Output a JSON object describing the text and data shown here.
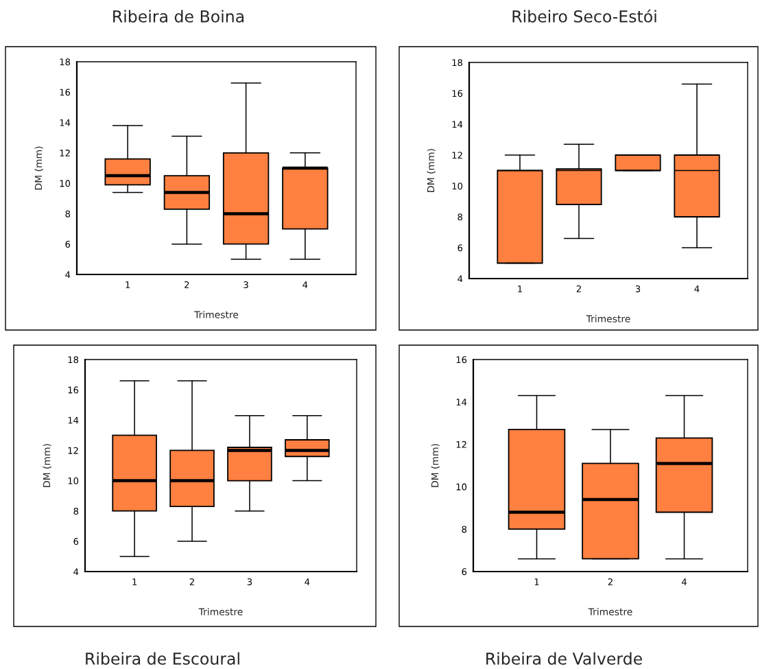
{
  "chart_data": [
    {
      "type": "box",
      "title": "Ribeira de Boina",
      "xlabel": "Trimestre",
      "ylabel": "DM (mm)",
      "categories": [
        "1",
        "2",
        "3",
        "4"
      ],
      "color": "#ff8040",
      "ylim": [
        4,
        18
      ],
      "yticks": [
        4,
        6,
        8,
        10,
        12,
        14,
        16,
        18
      ],
      "boxes": [
        {
          "low": 9.4,
          "q1": 9.9,
          "median": 10.5,
          "q3": 11.6,
          "high": 13.8
        },
        {
          "low": 6,
          "q1": 8.3,
          "median": 9.4,
          "q3": 10.5,
          "high": 13.1
        },
        {
          "low": 5,
          "q1": 6,
          "median": 8,
          "q3": 12,
          "high": 16.6
        },
        {
          "low": 5,
          "q1": 7,
          "median": 11,
          "q3": 11,
          "high": 12
        }
      ]
    },
    {
      "type": "box",
      "title": "Ribeiro Seco-Estói",
      "xlabel": "Trimestre",
      "ylabel": "DM (mm)",
      "categories": [
        "1",
        "2",
        "3",
        "4"
      ],
      "color": "#ff8040",
      "ylim": [
        4,
        18
      ],
      "yticks": [
        4,
        6,
        8,
        10,
        12,
        14,
        16,
        18
      ],
      "boxes": [
        {
          "low": 5,
          "q1": 5,
          "median": 11,
          "q3": 11,
          "high": 12
        },
        {
          "low": 6.6,
          "q1": 8.8,
          "median": 11,
          "q3": 11.1,
          "high": 12.7
        },
        {
          "low": 11,
          "q1": 11,
          "median": 11,
          "q3": 12,
          "high": 12
        },
        {
          "low": 6,
          "q1": 8,
          "median": 11,
          "q3": 12,
          "high": 16.6
        }
      ]
    },
    {
      "type": "box",
      "title": "Ribeira de Escoural",
      "xlabel": "Trimestre",
      "ylabel": "DM (mm)",
      "categories": [
        "1",
        "2",
        "3",
        "4"
      ],
      "color": "#ff8040",
      "ylim": [
        4,
        18
      ],
      "yticks": [
        4,
        6,
        8,
        10,
        12,
        14,
        16,
        18
      ],
      "boxes": [
        {
          "low": 5,
          "q1": 8,
          "median": 10,
          "q3": 13,
          "high": 16.6
        },
        {
          "low": 6,
          "q1": 8.3,
          "median": 10,
          "q3": 12,
          "high": 16.6
        },
        {
          "low": 8,
          "q1": 10,
          "median": 12,
          "q3": 12.2,
          "high": 14.3
        },
        {
          "low": 10,
          "q1": 11.6,
          "median": 12,
          "q3": 12.7,
          "high": 14.3
        }
      ]
    },
    {
      "type": "box",
      "title": "Ribeira de Valverde",
      "xlabel": "Trimestre",
      "ylabel": "DM (mm)",
      "categories": [
        "1",
        "2",
        "4"
      ],
      "color": "#ff8040",
      "ylim": [
        6,
        16
      ],
      "yticks": [
        6,
        8,
        10,
        12,
        14,
        16
      ],
      "boxes": [
        {
          "low": 6.6,
          "q1": 8,
          "median": 8.8,
          "q3": 12.7,
          "high": 14.3
        },
        {
          "low": 6.6,
          "q1": 6.6,
          "median": 9.4,
          "q3": 11.1,
          "high": 12.7
        },
        {
          "low": 6.6,
          "q1": 8.8,
          "median": 11.1,
          "q3": 12.3,
          "high": 14.3
        }
      ]
    }
  ]
}
